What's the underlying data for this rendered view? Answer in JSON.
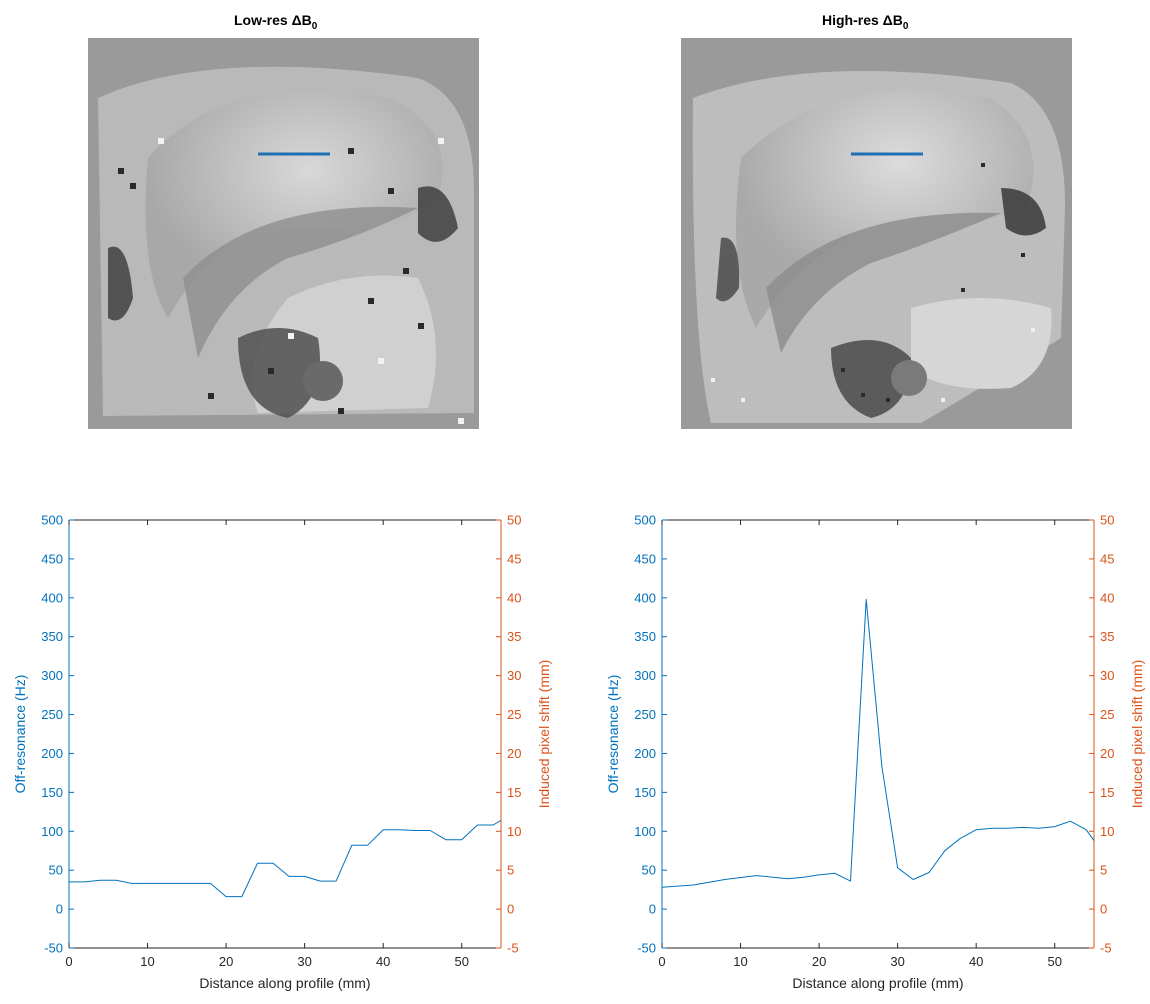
{
  "panels": {
    "left": {
      "title_prefix": "Low-res ΔB",
      "title_sub": "0",
      "image": "low-res-field-map"
    },
    "right": {
      "title_prefix": "High-res ΔB",
      "title_sub": "0",
      "image": "high-res-field-map"
    }
  },
  "colors": {
    "primary_axis": "#0072BD",
    "secondary_axis": "#D95319",
    "line": "#0072BD",
    "profile_marker": "#1f6fb4"
  },
  "chart_data": [
    {
      "type": "line",
      "xlabel": "Distance along profile (mm)",
      "ylabel": "Off-resonance (Hz)",
      "y2label": "Induced pixel shift (mm)",
      "xlim": [
        0,
        55
      ],
      "ylim": [
        -50,
        500
      ],
      "y2lim": [
        -5,
        50
      ],
      "xticks": [
        0,
        10,
        20,
        30,
        40,
        50
      ],
      "yticks": [
        -50,
        0,
        50,
        100,
        150,
        200,
        250,
        300,
        350,
        400,
        450,
        500
      ],
      "y2ticks": [
        -5,
        0,
        5,
        10,
        15,
        20,
        25,
        30,
        35,
        40,
        45,
        50
      ],
      "x": [
        0,
        2,
        4,
        6,
        8,
        10,
        12,
        14,
        16,
        18,
        20,
        22,
        24,
        26,
        28,
        30,
        32,
        34,
        36,
        38,
        40,
        42,
        44,
        46,
        48,
        50,
        52,
        54,
        55
      ],
      "y": [
        35,
        35,
        37,
        37,
        33,
        33,
        33,
        33,
        33,
        33,
        16,
        16,
        59,
        59,
        42,
        42,
        36,
        36,
        82,
        82,
        102,
        102,
        101,
        101,
        89,
        89,
        108,
        108,
        114
      ]
    },
    {
      "type": "line",
      "xlabel": "Distance along profile (mm)",
      "ylabel": "Off-resonance (Hz)",
      "y2label": "Induced pixel shift (mm)",
      "xlim": [
        0,
        55
      ],
      "ylim": [
        -50,
        500
      ],
      "y2lim": [
        -5,
        50
      ],
      "xticks": [
        0,
        10,
        20,
        30,
        40,
        50
      ],
      "yticks": [
        -50,
        0,
        50,
        100,
        150,
        200,
        250,
        300,
        350,
        400,
        450,
        500
      ],
      "y2ticks": [
        -5,
        0,
        5,
        10,
        15,
        20,
        25,
        30,
        35,
        40,
        45,
        50
      ],
      "x": [
        0,
        4,
        8,
        12,
        16,
        18,
        20,
        22,
        24,
        26,
        28,
        30,
        32,
        34,
        36,
        38,
        40,
        42,
        44,
        46,
        48,
        50,
        52,
        54,
        55
      ],
      "y": [
        28,
        31,
        38,
        43,
        39,
        41,
        44,
        46,
        36,
        398,
        183,
        53,
        38,
        47,
        75,
        91,
        102,
        104,
        104,
        105,
        104,
        106,
        113,
        102,
        88
      ]
    }
  ]
}
